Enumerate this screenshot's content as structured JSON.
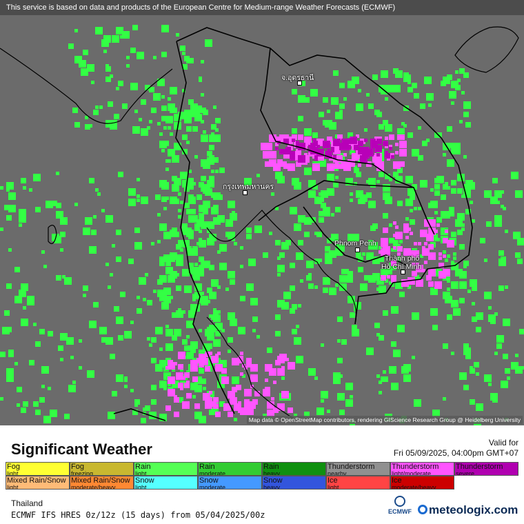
{
  "map": {
    "banner": "This service is based on data and products of the European Centre for Medium-range Weather Forecasts (ECMWF)",
    "attribution": "Map data © OpenStreetMap contributors, rendering GIScience Research Group @ Heidelberg University",
    "cities": [
      {
        "name": "จ.อุดรธานี"
      },
      {
        "name": "กรุงเทพมหานคร"
      },
      {
        "name": "Phnom Penh"
      },
      {
        "name": "Thành phố"
      },
      {
        "name": "Hồ Chí Minh"
      }
    ],
    "colors": {
      "background": "#6b6b6b",
      "border": "#000000",
      "rain_light": "#33ff44",
      "thunder_light": "#ff55ff",
      "thunder_severe": "#b800b8"
    }
  },
  "legend": {
    "title": "Significant Weather",
    "valid_for_label": "Valid for",
    "valid_time": "Fri 05/09/2025, 04:00pm GMT+07",
    "row1": [
      {
        "label": "Fog",
        "sub": "light",
        "color": "#ffff33"
      },
      {
        "label": "Fog",
        "sub": "freezing",
        "color": "#c8b830"
      },
      {
        "label": "Rain",
        "sub": "light",
        "color": "#55ff55"
      },
      {
        "label": "Rain",
        "sub": "moderate",
        "color": "#33cc33"
      },
      {
        "label": "Rain",
        "sub": "heavy",
        "color": "#109010"
      },
      {
        "label": "Thunderstorm",
        "sub": "nearby",
        "color": "#909090"
      },
      {
        "label": "Thunderstorm",
        "sub": "light/moderate",
        "color": "#ff55ff"
      },
      {
        "label": "Thunderstorm",
        "sub": "severe",
        "color": "#b000b0"
      }
    ],
    "row2": [
      {
        "label": "Mixed Rain/Snow",
        "sub": "light",
        "color": "#ffbb77"
      },
      {
        "label": "Mixed Rain/Snow",
        "sub": "moderate/heavy",
        "color": "#ff8833"
      },
      {
        "label": "Snow",
        "sub": "light",
        "color": "#55ffff"
      },
      {
        "label": "Snow",
        "sub": "moderate",
        "color": "#4499ff"
      },
      {
        "label": "Snow",
        "sub": "heavy",
        "color": "#3355dd"
      },
      {
        "label": "Ice",
        "sub": "light",
        "color": "#ff4444"
      },
      {
        "label": "Ice",
        "sub": "moderate/heavy",
        "color": "#cc0000"
      }
    ],
    "region": "Thailand",
    "model": "ECMWF IFS HRES 0z/12z (15 days) from 05/04/2025/00z",
    "ecmwf_label": "ECMWF",
    "brand": "meteologix.com"
  }
}
